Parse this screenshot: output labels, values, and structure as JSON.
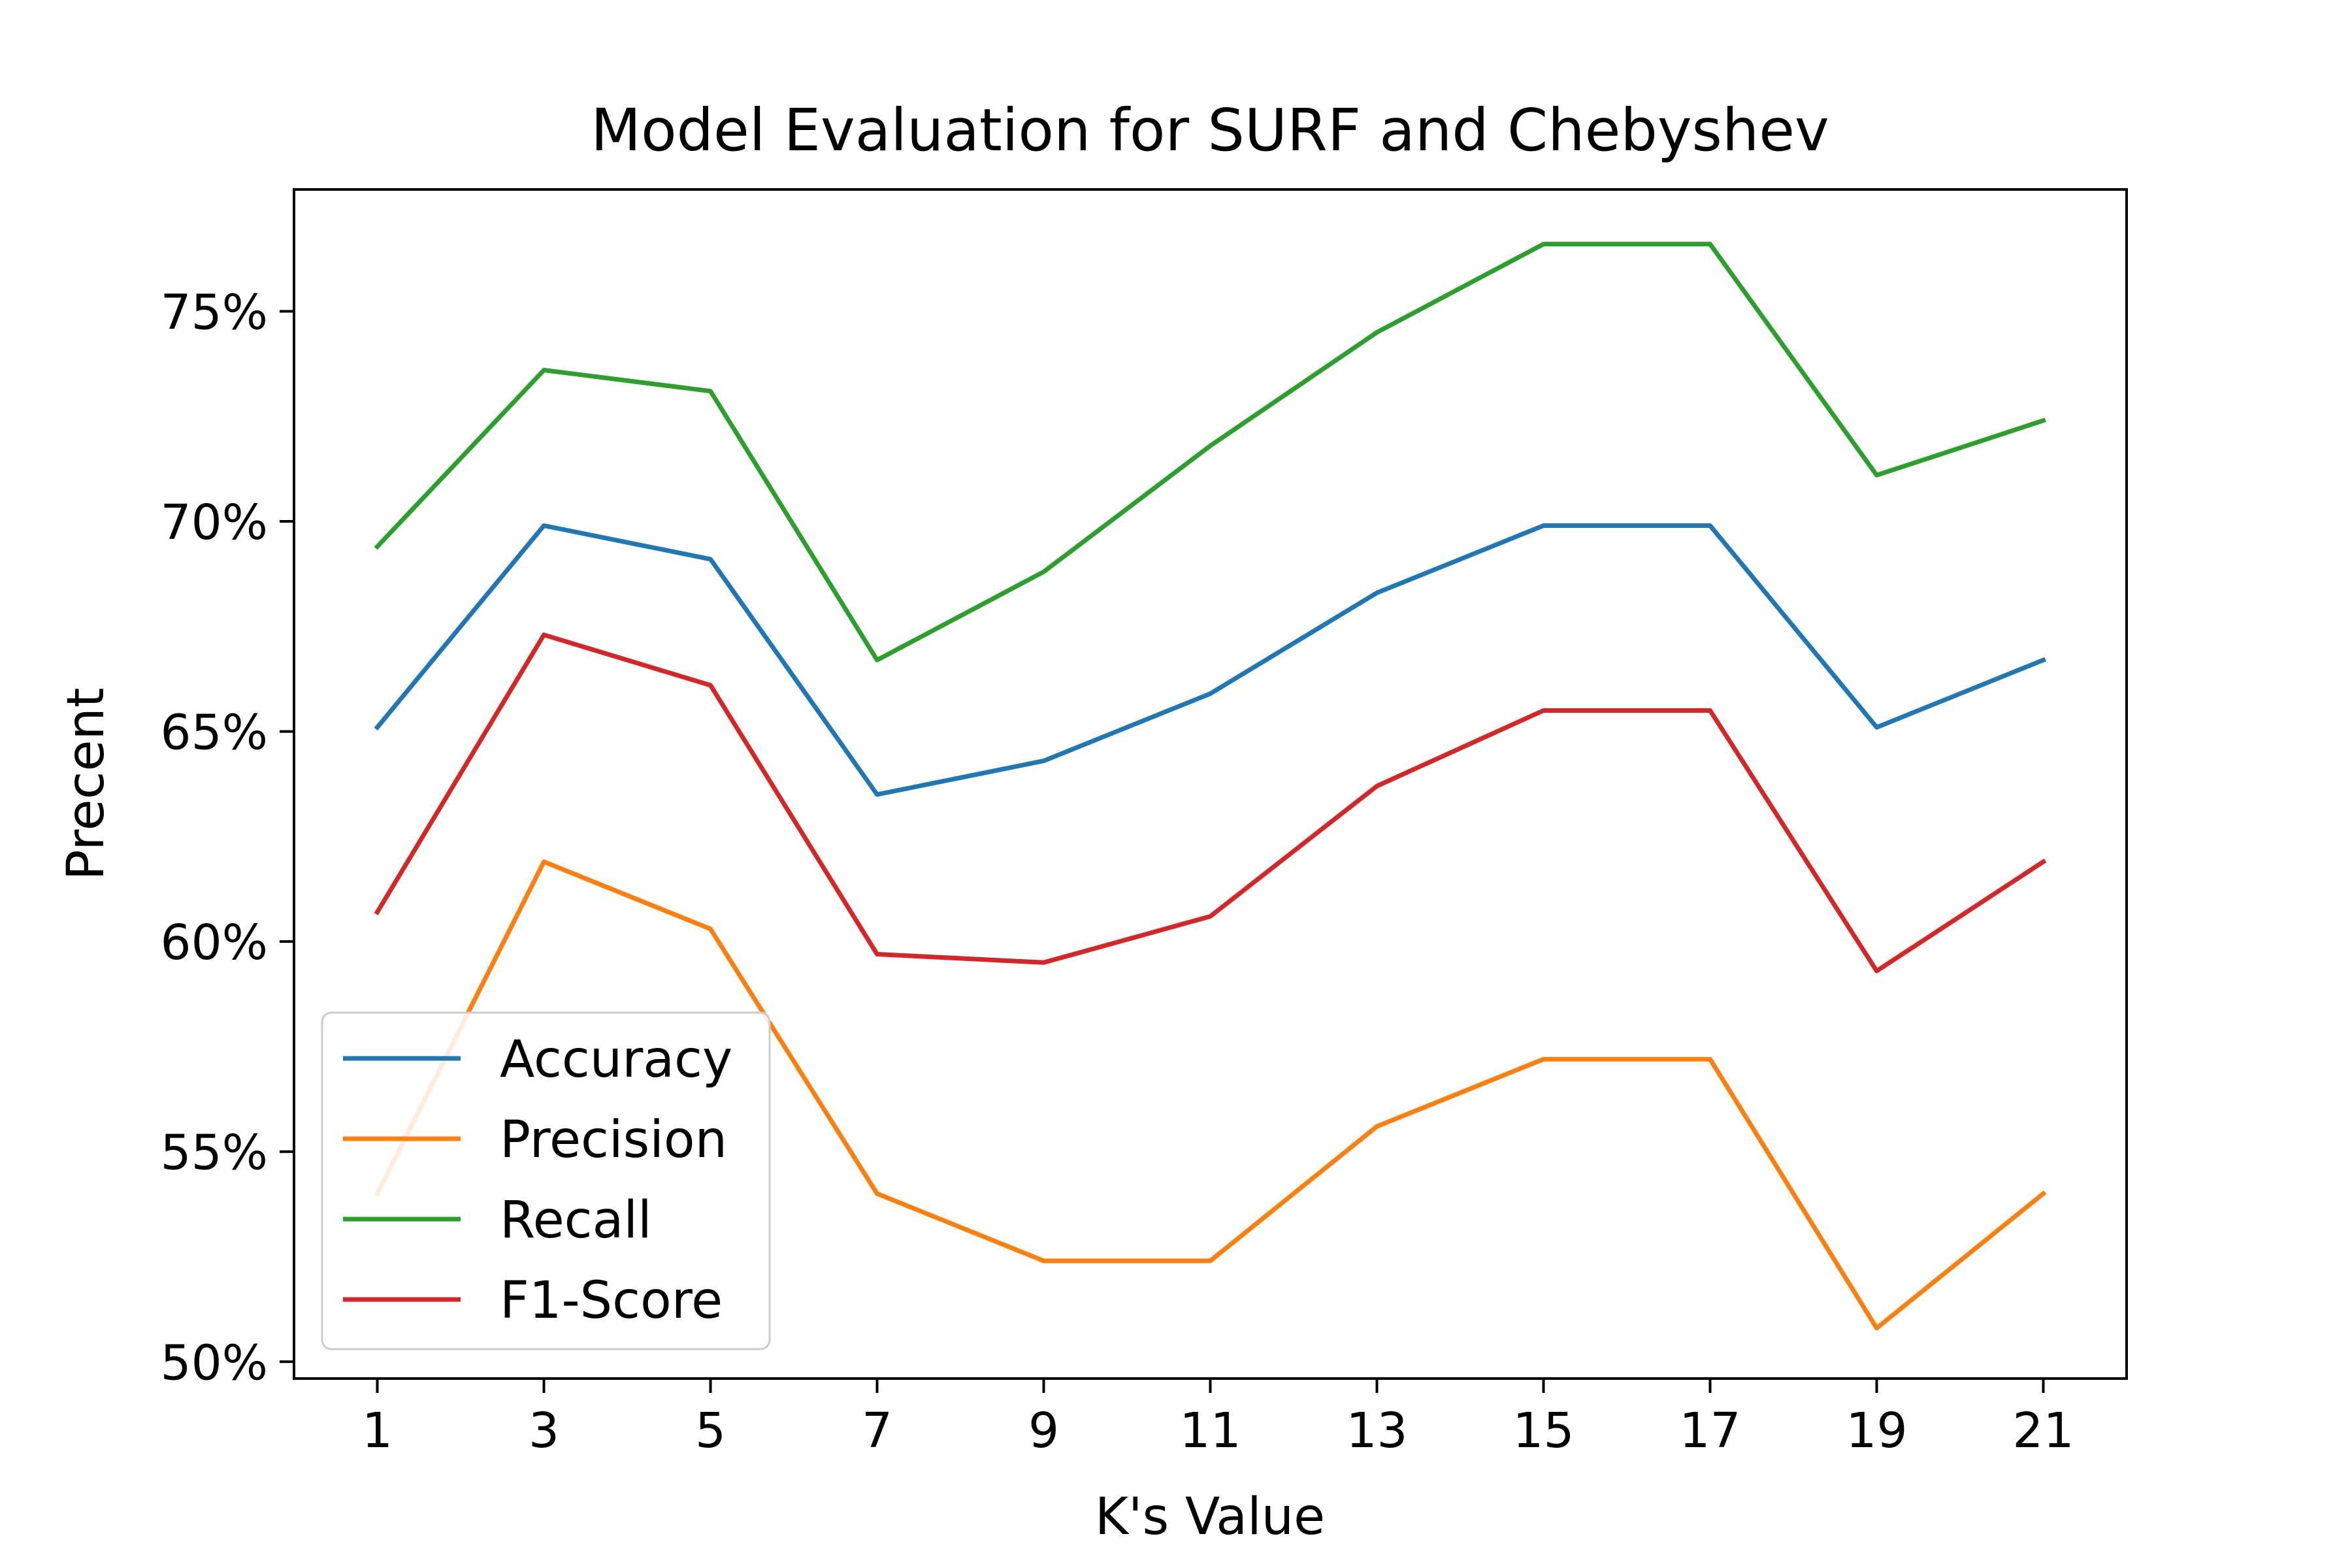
{
  "chart_data": {
    "type": "line",
    "title": "Model Evaluation for SURF and Chebyshev",
    "xlabel": "K's Value",
    "ylabel": "Precent",
    "x": [
      1,
      3,
      5,
      7,
      9,
      11,
      13,
      15,
      17,
      19,
      21
    ],
    "x_tick_labels": [
      "1",
      "3",
      "5",
      "7",
      "9",
      "11",
      "13",
      "15",
      "17",
      "19",
      "21"
    ],
    "xlim": [
      0,
      22
    ],
    "ylim": [
      49.6,
      77.9
    ],
    "y_ticks": [
      50,
      55,
      60,
      65,
      70,
      75
    ],
    "y_tick_labels": [
      "50%",
      "55%",
      "60%",
      "65%",
      "70%",
      "75%"
    ],
    "grid": false,
    "legend_position": "lower-left",
    "series": [
      {
        "name": "Accuracy",
        "color": "#1f77b4",
        "values": [
          65.1,
          69.9,
          69.1,
          63.5,
          64.3,
          65.9,
          68.3,
          69.9,
          69.9,
          65.1,
          66.7
        ]
      },
      {
        "name": "Precision",
        "color": "#ff7f0e",
        "values": [
          54.0,
          61.9,
          60.3,
          54.0,
          52.4,
          52.4,
          55.6,
          57.2,
          57.2,
          50.8,
          54.0
        ]
      },
      {
        "name": "Recall",
        "color": "#2ca02c",
        "values": [
          69.4,
          73.6,
          73.1,
          66.7,
          68.8,
          71.8,
          74.5,
          76.6,
          76.6,
          71.1,
          72.4
        ]
      },
      {
        "name": "F1-Score",
        "color": "#d62728",
        "values": [
          60.7,
          67.3,
          66.1,
          59.7,
          59.5,
          60.6,
          63.7,
          65.5,
          65.5,
          59.3,
          61.9
        ]
      }
    ]
  }
}
